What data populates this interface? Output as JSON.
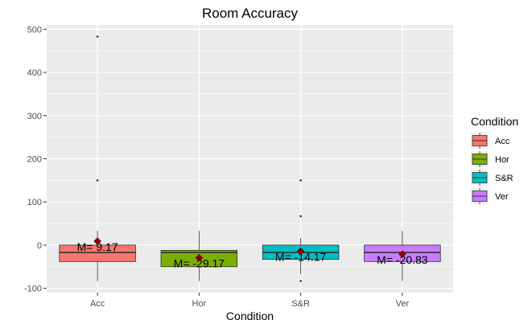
{
  "chart_data": {
    "type": "box",
    "title": "Room Accuracy",
    "xlabel": "Condition",
    "ylabel": "",
    "ylim": [
      -110,
      510
    ],
    "yticks": [
      -100,
      0,
      100,
      200,
      300,
      400,
      500
    ],
    "ytick_labels": [
      "-100",
      "0",
      "100",
      "200",
      "300",
      "400",
      "500"
    ],
    "grid": true,
    "legend": {
      "title": "Condition",
      "placement": "right"
    },
    "categories": [
      "Acc",
      "Hor",
      "S&R",
      "Ver"
    ],
    "boxes": [
      {
        "name": "Acc",
        "color": "#F8766D",
        "q1": -38,
        "median": -17,
        "q3": 0,
        "whisker_low": -83,
        "whisker_high": 33,
        "outliers": [
          150,
          483
        ],
        "mean": 9.17,
        "mean_label": "M= 9.17"
      },
      {
        "name": "Hor",
        "color": "#7CAE00",
        "q1": -50,
        "median": -17,
        "q3": -12,
        "whisker_low": -83,
        "whisker_high": 33,
        "outliers": [],
        "mean": -29.17,
        "mean_label": "M= -29.17"
      },
      {
        "name": "S&R",
        "color": "#00BFC4",
        "q1": -33,
        "median": -17,
        "q3": 0,
        "whisker_low": -67,
        "whisker_high": 17,
        "outliers": [
          -83,
          67,
          150
        ],
        "mean": -14.17,
        "mean_label": "M= -14.17"
      },
      {
        "name": "Ver",
        "color": "#C77CFF",
        "q1": -38,
        "median": -17,
        "q3": 0,
        "whisker_low": -83,
        "whisker_high": 33,
        "outliers": [],
        "mean": -20.83,
        "mean_label": "M= -20.83"
      }
    ],
    "mean_marker_color": "#8B0000"
  }
}
